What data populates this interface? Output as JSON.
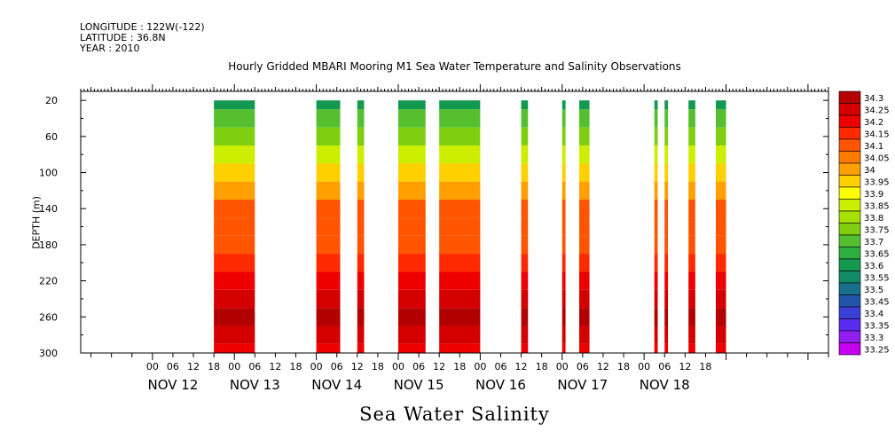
{
  "header": {
    "longitude": "LONGITUDE : 122W(-122)",
    "latitude": "LATITUDE : 36.8N",
    "year": "YEAR : 2010"
  },
  "footer_title": "Sea Water Salinity",
  "chart_data": {
    "type": "heatmap",
    "title": "Hourly Gridded MBARI Mooring M1 Sea Water Temperature and Salinity Observations",
    "xlabel": "",
    "ylabel": "DEPTH (m)",
    "xlim_hours": [
      -21,
      198
    ],
    "ylim": [
      300,
      10
    ],
    "y_ticks": [
      20,
      60,
      100,
      140,
      180,
      220,
      260,
      300
    ],
    "x_hour_ticks": [
      "00",
      "06",
      "12",
      "18",
      "00",
      "06",
      "12",
      "18",
      "00",
      "06",
      "12",
      "18",
      "00",
      "06",
      "12",
      "18",
      "00",
      "06",
      "12",
      "18",
      "00",
      "06",
      "12",
      "18",
      "00",
      "06",
      "12",
      "18"
    ],
    "day_labels": [
      "NOV 12",
      "NOV 13",
      "NOV 14",
      "NOV 15",
      "NOV 16",
      "NOV 17",
      "NOV 18"
    ],
    "colorbar_levels": [
      "34.3",
      "34.25",
      "34.2",
      "34.15",
      "34.1",
      "34.05",
      "34",
      "33.95",
      "33.9",
      "33.85",
      "33.8",
      "33.75",
      "33.7",
      "33.65",
      "33.6",
      "33.55",
      "33.5",
      "33.45",
      "33.4",
      "33.35",
      "33.3",
      "33.25"
    ],
    "colorbar_colors": [
      "#b30000",
      "#d40000",
      "#ee0000",
      "#ff2a00",
      "#ff5500",
      "#ff7a00",
      "#ff9f00",
      "#ffd000",
      "#ffff00",
      "#ccee00",
      "#a6df00",
      "#7fcf10",
      "#55bf30",
      "#2fae40",
      "#149a50",
      "#138a66",
      "#1a6f8c",
      "#2255aa",
      "#3a3fd6",
      "#5a2cf0",
      "#8f1ff0",
      "#c400ee"
    ],
    "depths": [
      20,
      40,
      60,
      80,
      100,
      120,
      140,
      160,
      180,
      200,
      220,
      240,
      260,
      280,
      300
    ],
    "profile": [
      33.55,
      33.65,
      33.72,
      33.8,
      33.92,
      33.99,
      34.05,
      34.08,
      34.09,
      34.11,
      34.18,
      34.22,
      34.26,
      34.2,
      34.17
    ],
    "data_segments_hours": [
      [
        18,
        30
      ],
      [
        48,
        55
      ],
      [
        60,
        62
      ],
      [
        72,
        80
      ],
      [
        84,
        96
      ],
      [
        108,
        110
      ],
      [
        120,
        121
      ],
      [
        125,
        128
      ],
      [
        147,
        148
      ],
      [
        150,
        151
      ],
      [
        157,
        159
      ],
      [
        165,
        168
      ]
    ]
  }
}
